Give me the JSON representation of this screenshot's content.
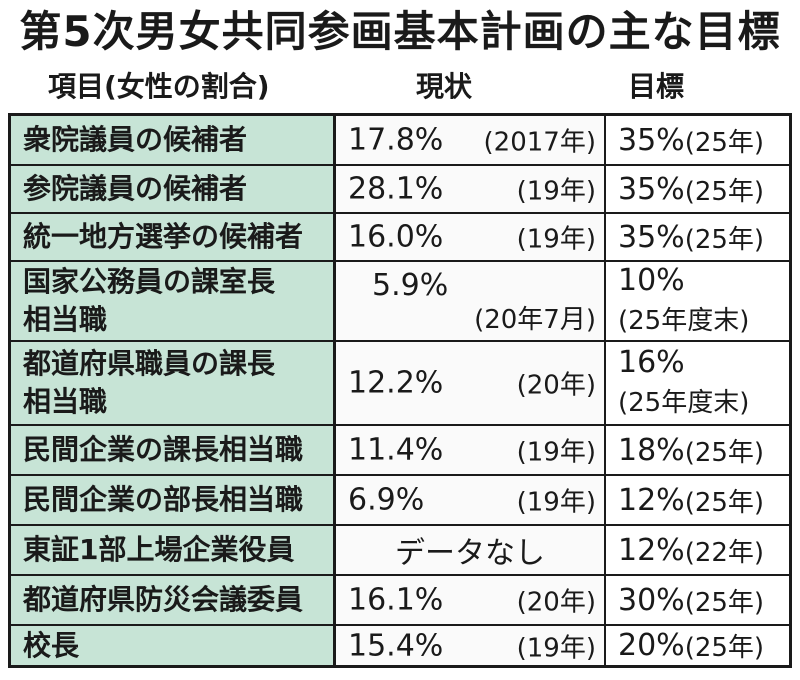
{
  "title": "第5次男女共同参画基本計画の主な目標",
  "header": {
    "item": "項目(女性の割合)",
    "current": "現状",
    "target": "目標"
  },
  "rows": [
    {
      "item": "衆院議員の候補者",
      "current": "17.8%",
      "current_year": "(2017年)",
      "target": "35%",
      "target_year": "(25年)"
    },
    {
      "item": "参院議員の候補者",
      "current": "28.1%",
      "current_year": "(19年)",
      "target": "35%",
      "target_year": "(25年)"
    },
    {
      "item": "統一地方選挙の候補者",
      "current": "16.0%",
      "current_year": "(19年)",
      "target": "35%",
      "target_year": "(25年)"
    },
    {
      "item_l1": "国家公務員の課室長",
      "item_l2": "相当職",
      "current": "5.9%",
      "current_year": "(20年7月)",
      "target": "10%",
      "target_year": "(25年度末)"
    },
    {
      "item_l1": "都道府県職員の課長",
      "item_l2": "相当職",
      "current": "12.2%",
      "current_year": "(20年)",
      "target": "16%",
      "target_year": "(25年度末)"
    },
    {
      "item": "民間企業の課長相当職",
      "current": "11.4%",
      "current_year": "(19年)",
      "target": "18%",
      "target_year": "(25年)"
    },
    {
      "item": "民間企業の部長相当職",
      "current": "6.9%",
      "current_year": "(19年)",
      "target": "12%",
      "target_year": "(25年)"
    },
    {
      "item": "東証1部上場企業役員",
      "current_text": "データなし",
      "target": "12%",
      "target_year": "(22年)"
    },
    {
      "item": "都道府県防災会議委員",
      "current": "16.1%",
      "current_year": "(20年)",
      "target": "30%",
      "target_year": "(25年)"
    },
    {
      "item": "校長",
      "current": "15.4%",
      "current_year": "(19年)",
      "target": "20%",
      "target_year": "(25年)"
    }
  ]
}
